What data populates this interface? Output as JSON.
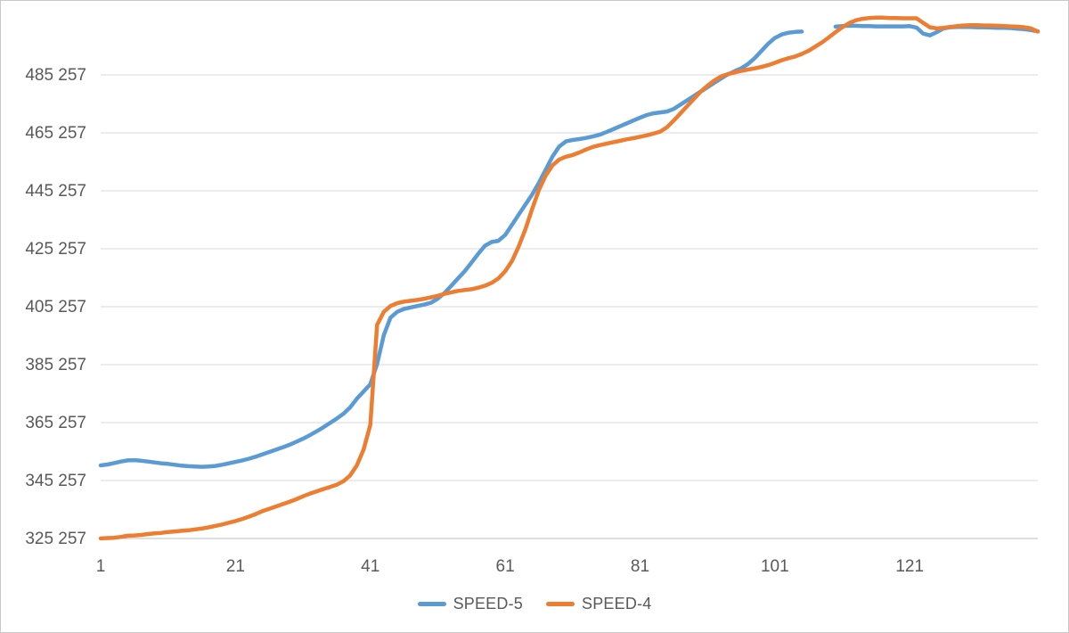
{
  "chart_data": {
    "type": "line",
    "title": "",
    "xlabel": "",
    "ylabel": "",
    "x_start": 1,
    "x_end": 140,
    "ylim": [
      325257,
      505257
    ],
    "grid": "horizontal",
    "legend_position": "bottom-center",
    "colors": {
      "gridline": "#d9d9d9",
      "axis_line": "#bfbfbf",
      "tick_text": "#595959",
      "background": "#ffffff",
      "series_blue": "#5b9bd5",
      "series_orange": "#ed7d31"
    },
    "y_ticks": [
      {
        "value": 325257,
        "label": "325 257"
      },
      {
        "value": 345257,
        "label": "345 257"
      },
      {
        "value": 365257,
        "label": "365 257"
      },
      {
        "value": 385257,
        "label": "385 257"
      },
      {
        "value": 405257,
        "label": "405 257"
      },
      {
        "value": 425257,
        "label": "425 257"
      },
      {
        "value": 445257,
        "label": "445 257"
      },
      {
        "value": 465257,
        "label": "465 257"
      },
      {
        "value": 485257,
        "label": "485 257"
      }
    ],
    "x_ticks": [
      {
        "value": 1,
        "label": "1"
      },
      {
        "value": 21,
        "label": "21"
      },
      {
        "value": 41,
        "label": "41"
      },
      {
        "value": 61,
        "label": "61"
      },
      {
        "value": 81,
        "label": "81"
      },
      {
        "value": 101,
        "label": "101"
      },
      {
        "value": 121,
        "label": "121"
      }
    ],
    "series": [
      {
        "name": "SPEED-5",
        "color": "#5b9bd5",
        "line_width": 4.5,
        "values": [
          350500,
          350800,
          351300,
          351800,
          352200,
          352300,
          352100,
          351800,
          351500,
          351200,
          351000,
          350700,
          350400,
          350200,
          350100,
          350000,
          350100,
          350300,
          350700,
          351200,
          351700,
          352200,
          352800,
          353500,
          354300,
          355100,
          355900,
          356700,
          357600,
          358600,
          359700,
          360900,
          362200,
          363600,
          365100,
          366600,
          368300,
          370500,
          373500,
          376000,
          378500,
          385500,
          395500,
          401500,
          403500,
          404500,
          405000,
          405500,
          406000,
          406600,
          408000,
          410000,
          412500,
          415000,
          417500,
          420500,
          423500,
          426300,
          427600,
          428000,
          430000,
          433500,
          437000,
          440500,
          444000,
          448000,
          452500,
          457000,
          460500,
          462300,
          462800,
          463100,
          463500,
          464000,
          464600,
          465500,
          466500,
          467500,
          468500,
          469500,
          470500,
          471400,
          472000,
          472300,
          472600,
          473500,
          475000,
          476500,
          478000,
          479500,
          481000,
          482500,
          484000,
          485400,
          486500,
          487500,
          489000,
          491000,
          493500,
          496000,
          498000,
          499200,
          499800,
          500100,
          500200,
          null,
          null,
          null,
          null,
          501900,
          502100,
          502200,
          502200,
          502100,
          502100,
          502000,
          502000,
          502000,
          502000,
          502000,
          502100,
          501600,
          499500,
          498900,
          500000,
          501300,
          501700,
          501800,
          501800,
          501800,
          501700,
          501700,
          501600,
          501500,
          501500,
          501400,
          501200,
          501000,
          500700,
          500300
        ]
      },
      {
        "name": "SPEED-4",
        "color": "#ed7d31",
        "line_width": 4.5,
        "values": [
          325300,
          325400,
          325500,
          325800,
          326200,
          326300,
          326500,
          326800,
          327000,
          327200,
          327500,
          327700,
          327900,
          328100,
          328400,
          328700,
          329100,
          329600,
          330100,
          330700,
          331300,
          332000,
          332800,
          333700,
          334700,
          335500,
          336300,
          337100,
          337900,
          338800,
          339800,
          340700,
          341500,
          342300,
          343000,
          343800,
          345000,
          347000,
          350500,
          356000,
          364500,
          399000,
          403500,
          405500,
          406500,
          407000,
          407300,
          407600,
          408000,
          408500,
          409000,
          409700,
          410200,
          410700,
          411000,
          411300,
          411800,
          412500,
          413500,
          415000,
          417500,
          421000,
          426000,
          432000,
          439000,
          445500,
          450500,
          454000,
          456000,
          457000,
          457600,
          458500,
          459500,
          460400,
          461000,
          461500,
          462000,
          462500,
          463000,
          463400,
          463900,
          464400,
          465000,
          465700,
          467200,
          469500,
          472000,
          474500,
          477000,
          479500,
          481500,
          483300,
          484700,
          485500,
          486100,
          486600,
          487100,
          487500,
          488000,
          488600,
          489400,
          490300,
          491000,
          491600,
          492500,
          493600,
          495000,
          496500,
          498200,
          500000,
          501700,
          503100,
          504100,
          504600,
          504900,
          505000,
          505000,
          504900,
          504900,
          504800,
          504800,
          504800,
          503200,
          501700,
          501300,
          501500,
          501800,
          502100,
          502300,
          502400,
          502400,
          502300,
          502300,
          502200,
          502100,
          502000,
          501900,
          501700,
          501300,
          500200
        ]
      }
    ]
  }
}
